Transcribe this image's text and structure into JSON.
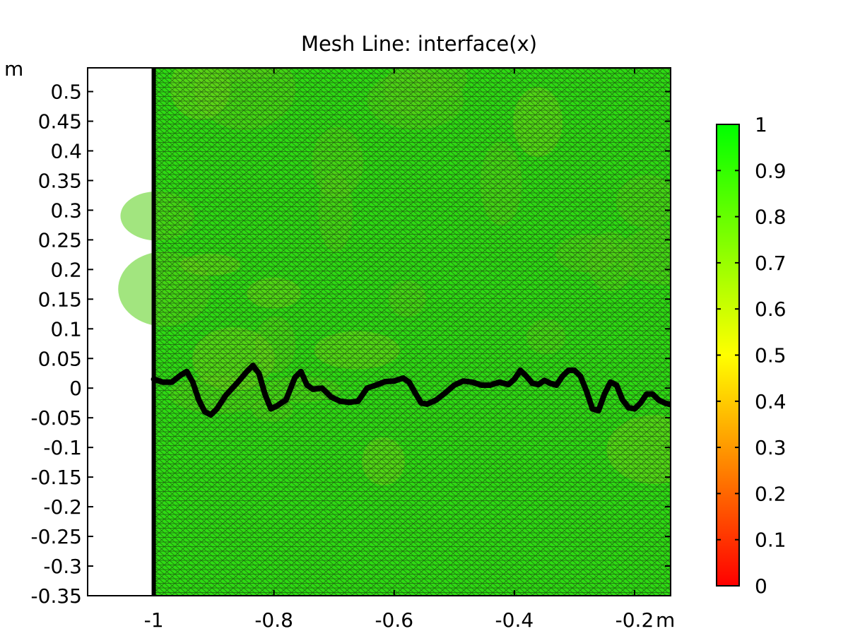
{
  "chart_data": {
    "type": "heatmap",
    "title": "Mesh  Line: interface(x)",
    "x_unit": "m",
    "y_unit": "m",
    "xlim": [
      -1.11,
      -0.14
    ],
    "ylim": [
      -0.35,
      0.54
    ],
    "x_ticks": [
      -1,
      -0.8,
      -0.6,
      -0.4,
      -0.2
    ],
    "x_tick_labels": [
      "-1",
      "-0.8",
      "-0.6",
      "-0.4",
      "-0.2"
    ],
    "y_ticks": [
      0.5,
      0.45,
      0.4,
      0.35,
      0.3,
      0.25,
      0.2,
      0.15,
      0.1,
      0.05,
      0,
      -0.05,
      -0.1,
      -0.15,
      -0.2,
      -0.25,
      -0.3,
      -0.35
    ],
    "y_tick_labels": [
      "0.5",
      "0.45",
      "0.4",
      "0.35",
      "0.3",
      "0.25",
      "0.2",
      "0.15",
      "0.1",
      "0.05",
      "0",
      "-0.05",
      "-0.1",
      "-0.15",
      "-0.2",
      "-0.25",
      "-0.3",
      "-0.35"
    ],
    "domain_left_boundary_x": -1.0,
    "mesh_quality_range": [
      0,
      1
    ],
    "mesh_quality_typical": 0.9,
    "interface_line": {
      "x": [
        -1.0,
        -0.985,
        -0.97,
        -0.955,
        -0.945,
        -0.935,
        -0.925,
        -0.915,
        -0.905,
        -0.895,
        -0.88,
        -0.86,
        -0.845,
        -0.835,
        -0.825,
        -0.815,
        -0.805,
        -0.795,
        -0.78,
        -0.765,
        -0.755,
        -0.745,
        -0.735,
        -0.72,
        -0.705,
        -0.69,
        -0.675,
        -0.66,
        -0.645,
        -0.63,
        -0.615,
        -0.6,
        -0.585,
        -0.575,
        -0.565,
        -0.555,
        -0.545,
        -0.53,
        -0.515,
        -0.5,
        -0.485,
        -0.47,
        -0.455,
        -0.44,
        -0.425,
        -0.41,
        -0.4,
        -0.39,
        -0.38,
        -0.37,
        -0.36,
        -0.35,
        -0.34,
        -0.33,
        -0.32,
        -0.31,
        -0.3,
        -0.29,
        -0.28,
        -0.27,
        -0.26,
        -0.25,
        -0.24,
        -0.23,
        -0.22,
        -0.21,
        -0.2,
        -0.19,
        -0.18,
        -0.17,
        -0.16,
        -0.15,
        -0.14
      ],
      "y": [
        0.015,
        0.01,
        0.01,
        0.022,
        0.028,
        0.01,
        -0.02,
        -0.04,
        -0.045,
        -0.035,
        -0.012,
        0.01,
        0.028,
        0.038,
        0.025,
        -0.01,
        -0.035,
        -0.03,
        -0.02,
        0.018,
        0.028,
        0.005,
        -0.002,
        0.0,
        -0.015,
        -0.022,
        -0.024,
        -0.022,
        0.0,
        0.005,
        0.011,
        0.012,
        0.017,
        0.01,
        -0.008,
        -0.025,
        -0.027,
        -0.02,
        -0.008,
        0.005,
        0.012,
        0.01,
        0.005,
        0.005,
        0.01,
        0.006,
        0.015,
        0.03,
        0.02,
        0.008,
        0.006,
        0.013,
        0.008,
        0.005,
        0.02,
        0.03,
        0.03,
        0.02,
        -0.005,
        -0.035,
        -0.038,
        -0.01,
        0.01,
        0.005,
        -0.02,
        -0.033,
        -0.035,
        -0.025,
        -0.01,
        -0.01,
        -0.02,
        -0.025,
        -0.028
      ]
    },
    "colorbar": {
      "range": [
        0,
        1
      ],
      "ticks": [
        1,
        0.9,
        0.8,
        0.7,
        0.6,
        0.5,
        0.4,
        0.3,
        0.2,
        0.1,
        0
      ],
      "tick_labels": [
        "1",
        "0.9",
        "0.8",
        "0.7",
        "0.6",
        "0.5",
        "0.4",
        "0.3",
        "0.2",
        "0.1",
        "0"
      ],
      "colors": [
        "#ff0000",
        "#ffff00",
        "#00ff00"
      ]
    },
    "grid": false
  }
}
